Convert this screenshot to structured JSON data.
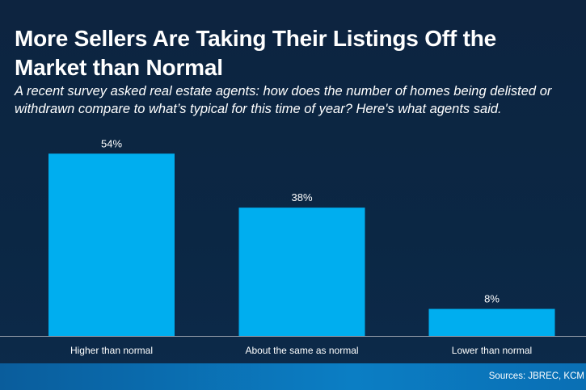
{
  "chart_data": {
    "type": "bar",
    "title": "More Sellers Are Taking Their Listings Off the Market than Normal",
    "subtitle": "A recent survey asked real estate agents: how does the number of homes being delisted or withdrawn compare to what’s typical for this time of year? Here's what agents said.",
    "categories": [
      "Higher than normal",
      "About the same as normal",
      "Lower than normal"
    ],
    "values": [
      54,
      38,
      8
    ],
    "value_labels": [
      "54%",
      "38%",
      "8%"
    ],
    "color": "#00aeef",
    "source": "Sources: JBREC, KCM"
  }
}
